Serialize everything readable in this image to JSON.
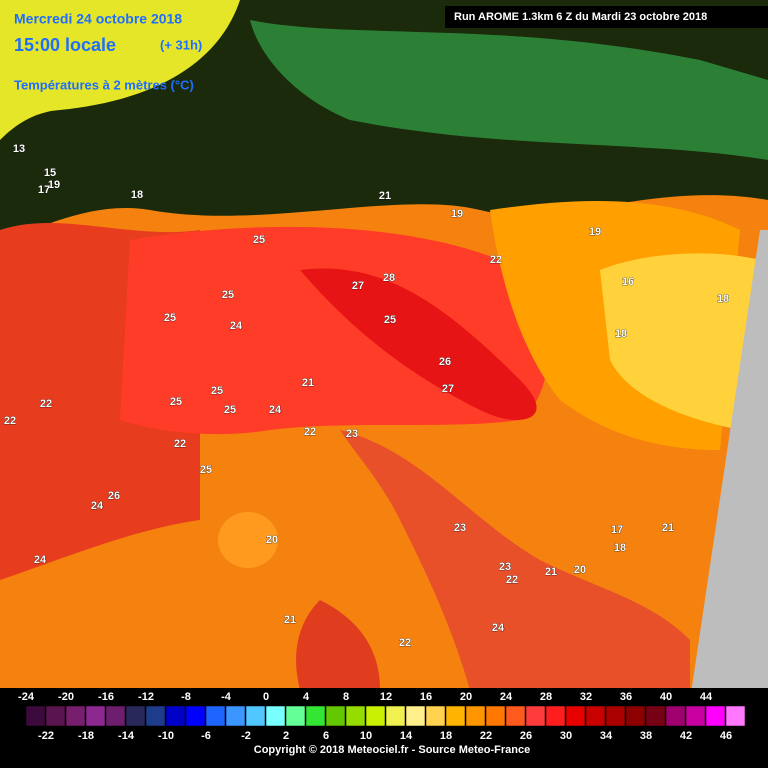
{
  "header": {
    "date": "Mercredi 24 octobre 2018",
    "time": "15:00 locale",
    "offset": "(+ 31h)",
    "field": "Températures à 2 mètres (°C)",
    "run": "Run AROME 1.3km 6 Z du Mardi 23 octobre 2018"
  },
  "map_labels": [
    28,
    27,
    26,
    27,
    25,
    25,
    24,
    25,
    25,
    25,
    25,
    25,
    22,
    23,
    21,
    24,
    22,
    20,
    21,
    22,
    23,
    22,
    23,
    24,
    21,
    19,
    18,
    16,
    18,
    17,
    19,
    21,
    22,
    21,
    20,
    18,
    24,
    24,
    26,
    25,
    22,
    22,
    19,
    18,
    17,
    15,
    13
  ],
  "legend": {
    "top_labels": [
      -24,
      -20,
      -16,
      -12,
      -8,
      -4,
      0,
      4,
      8,
      12,
      16,
      20,
      24,
      28,
      32,
      36,
      40,
      44
    ],
    "bottom_labels": [
      -22,
      -18,
      -14,
      -10,
      -6,
      -2,
      2,
      6,
      10,
      14,
      18,
      22,
      26,
      30,
      34,
      38,
      42,
      46
    ],
    "colors": [
      "#3c0a3c",
      "#5a1450",
      "#781e6e",
      "#8c2890",
      "#6e1e6e",
      "#28285a",
      "#1e3c8c",
      "#0000c8",
      "#0000ff",
      "#1e64ff",
      "#3c96ff",
      "#50c8ff",
      "#78ffff",
      "#64ff96",
      "#32e632",
      "#64c800",
      "#96dc00",
      "#c8f000",
      "#f0f050",
      "#fff08c",
      "#ffd250",
      "#ffb400",
      "#ff9600",
      "#ff7800",
      "#ff5a1e",
      "#ff3c3c",
      "#ff1e1e",
      "#e60000",
      "#c80000",
      "#aa0000",
      "#8c0000",
      "#780014",
      "#a0006e",
      "#c800a0",
      "#ff00ff",
      "#ff78ff"
    ]
  },
  "footer": {
    "copyright": "Copyright © 2018 Meteociel.fr - Source Meteo-France"
  }
}
